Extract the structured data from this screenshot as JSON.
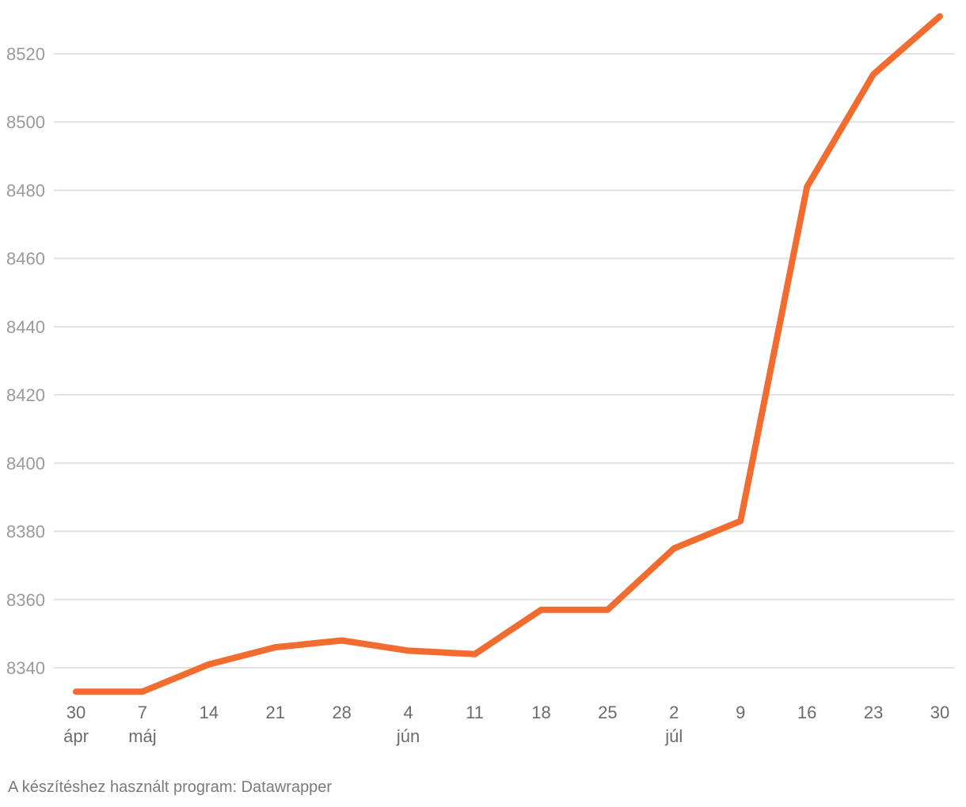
{
  "chart_data": {
    "type": "line",
    "title": "",
    "xlabel": "",
    "ylabel": "",
    "x": [
      "30",
      "7",
      "14",
      "21",
      "28",
      "4",
      "11",
      "18",
      "25",
      "2",
      "9",
      "16",
      "23",
      "30"
    ],
    "month_labels": [
      "ápr",
      "máj",
      "",
      "",
      "",
      "jún",
      "",
      "",
      "",
      "júl",
      "",
      "",
      "",
      ""
    ],
    "series": [
      {
        "values": [
          8333,
          8333,
          8341,
          8346,
          8348,
          8345,
          8344,
          8357,
          8357,
          8375,
          8383,
          8481,
          8514,
          8531
        ]
      }
    ],
    "y_ticks": [
      "8340",
      "8360",
      "8380",
      "8400",
      "8420",
      "8440",
      "8460",
      "8480",
      "8500",
      "8520"
    ],
    "ylim": [
      8333,
      8531
    ],
    "grid": true,
    "legend": "none",
    "colors": {
      "line": "#f26b2f",
      "grid": "#e2e2e2",
      "tick_text": "#9a9a9a",
      "x_text": "#6b6b6b"
    }
  },
  "footer": {
    "credit": "A készítéshez használt program: Datawrapper"
  }
}
